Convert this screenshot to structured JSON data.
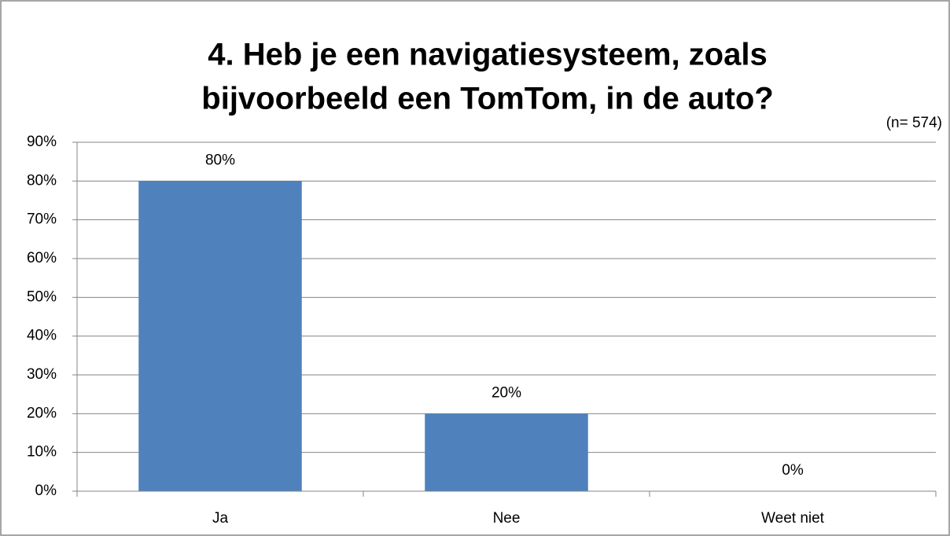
{
  "chart_data": {
    "type": "bar",
    "title": [
      "4. Heb je een navigatiesysteem, zoals",
      "bijvoorbeeld een TomTom, in de auto?"
    ],
    "annotation": "(n= 574)",
    "categories": [
      "Ja",
      "Nee",
      "Weet niet"
    ],
    "values": [
      80,
      20,
      0
    ],
    "value_labels": [
      "80%",
      "20%",
      "0%"
    ],
    "color": "#4f81bd",
    "ylim": [
      0,
      90
    ],
    "yticks": [
      {
        "value": 0,
        "label": "0%"
      },
      {
        "value": 10,
        "label": "10%"
      },
      {
        "value": 20,
        "label": "20%"
      },
      {
        "value": 30,
        "label": "30%"
      },
      {
        "value": 40,
        "label": "40%"
      },
      {
        "value": 50,
        "label": "50%"
      },
      {
        "value": 60,
        "label": "60%"
      },
      {
        "value": 70,
        "label": "70%"
      },
      {
        "value": 80,
        "label": "80%"
      },
      {
        "value": 90,
        "label": "90%"
      }
    ],
    "grid": true
  }
}
